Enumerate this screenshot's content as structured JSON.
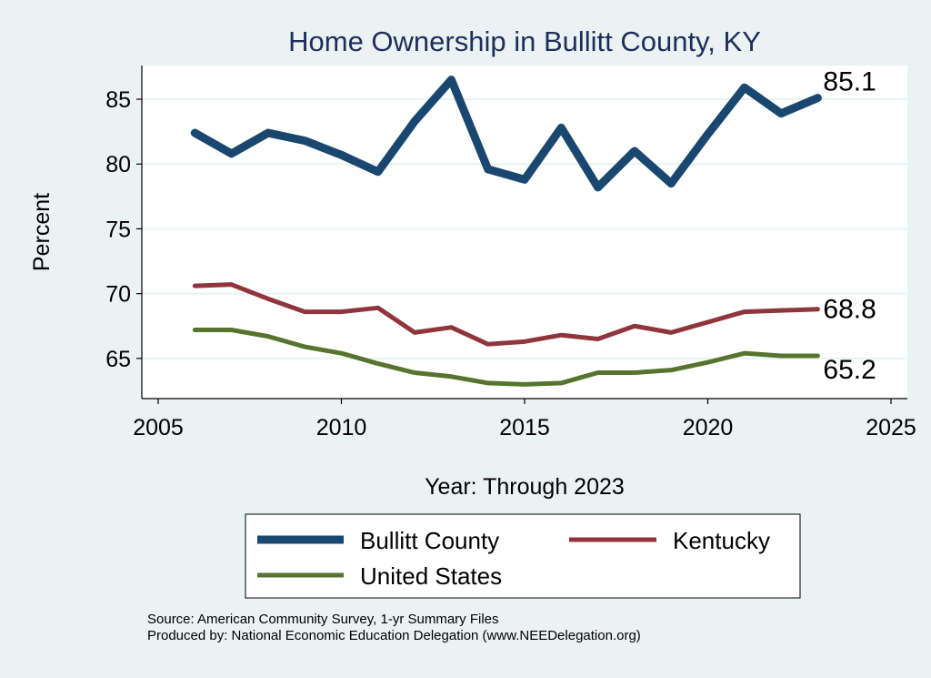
{
  "chart_data": {
    "type": "line",
    "title": "Home Ownership in Bullitt County, KY",
    "xlabel": "Year: Through 2023",
    "ylabel": "Percent",
    "xlim": [
      2005,
      2025
    ],
    "ylim": [
      61.9,
      87.6
    ],
    "xticks": [
      2005,
      2010,
      2015,
      2020,
      2025
    ],
    "yticks": [
      65,
      70,
      75,
      80,
      85
    ],
    "grid": true,
    "legend_position": "bottom",
    "x": [
      2006,
      2007,
      2008,
      2009,
      2010,
      2011,
      2012,
      2013,
      2014,
      2015,
      2016,
      2017,
      2018,
      2019,
      2020,
      2021,
      2022,
      2023
    ],
    "series": [
      {
        "name": "Bullitt County",
        "color": "#1a476f",
        "end_label": "85.1",
        "values": [
          82.4,
          80.8,
          82.4,
          81.8,
          80.7,
          79.4,
          83.3,
          86.5,
          79.6,
          78.8,
          82.8,
          78.2,
          81.0,
          78.5,
          82.3,
          85.9,
          83.9,
          85.1
        ]
      },
      {
        "name": "Kentucky",
        "color": "#90353b",
        "end_label": "68.8",
        "values": [
          70.6,
          70.7,
          69.6,
          68.6,
          68.6,
          68.9,
          67.0,
          67.4,
          66.1,
          66.3,
          66.8,
          66.5,
          67.5,
          67.0,
          67.8,
          68.6,
          68.7,
          68.8
        ]
      },
      {
        "name": "United States",
        "color": "#55752f",
        "end_label": "65.2",
        "values": [
          67.2,
          67.2,
          66.7,
          65.9,
          65.4,
          64.6,
          63.9,
          63.6,
          63.1,
          63.0,
          63.1,
          63.9,
          63.9,
          64.1,
          64.7,
          65.4,
          65.2,
          65.2
        ]
      }
    ]
  },
  "notes": {
    "source": "Source: American Community Survey, 1-yr Summary Files",
    "produced": "Produced by: National Economic Education Delegation (www.NEEDelegation.org)"
  }
}
